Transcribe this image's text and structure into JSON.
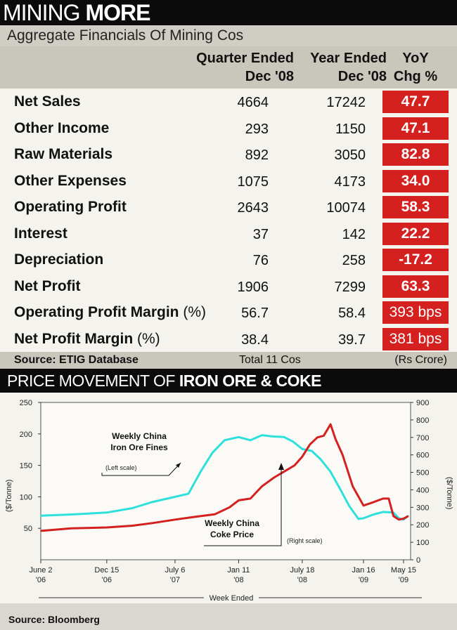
{
  "header": {
    "title_light": "MINING ",
    "title_bold": "MORE"
  },
  "subtitle": "Aggregate Financials Of Mining Cos",
  "table": {
    "columns": {
      "quarter": [
        "Quarter Ended",
        "Dec '08"
      ],
      "year": [
        "Year Ended",
        "Dec '08"
      ],
      "chg": [
        "YoY",
        "Chg %"
      ]
    },
    "rows": [
      {
        "label": "Net Sales",
        "unit": "",
        "quarter": "4664",
        "year": "17242",
        "chg": "47.7"
      },
      {
        "label": "Other Income",
        "unit": "",
        "quarter": "293",
        "year": "1150",
        "chg": "47.1"
      },
      {
        "label": "Raw Materials",
        "unit": "",
        "quarter": "892",
        "year": "3050",
        "chg": "82.8"
      },
      {
        "label": "Other Expenses",
        "unit": "",
        "quarter": "1075",
        "year": "4173",
        "chg": "34.0"
      },
      {
        "label": "Operating Profit",
        "unit": "",
        "quarter": "2643",
        "year": "10074",
        "chg": "58.3"
      },
      {
        "label": "Interest",
        "unit": "",
        "quarter": "37",
        "year": "142",
        "chg": "22.2"
      },
      {
        "label": "Depreciation",
        "unit": "",
        "quarter": "76",
        "year": "258",
        "chg": "-17.2"
      },
      {
        "label": "Net Profit",
        "unit": "",
        "quarter": "1906",
        "year": "7299",
        "chg": "63.3"
      },
      {
        "label": "Operating Profit Margin ",
        "unit": "(%)",
        "quarter": "56.7",
        "year": "58.4",
        "chg": "393 bps"
      },
      {
        "label": "Net Profit Margin ",
        "unit": "(%)",
        "quarter": "38.4",
        "year": "39.7",
        "chg": "381 bps"
      }
    ],
    "source": "Source: ETIG Database",
    "total": "Total 11 Cos",
    "unit": "(Rs Crore)"
  },
  "chart_header": {
    "light": "PRICE MOVEMENT OF ",
    "bold": "IRON ORE & COKE"
  },
  "chart_data": {
    "type": "line",
    "xlabel": "Week Ended",
    "x_ticks": [
      [
        "June 2",
        "'06"
      ],
      [
        "Dec 15",
        "'06"
      ],
      [
        "July 6",
        "'07"
      ],
      [
        "Jan 11",
        "'08"
      ],
      [
        "July 18",
        "'08"
      ],
      [
        "Jan 16",
        "'09"
      ],
      [
        "May 15",
        "'09"
      ]
    ],
    "left_axis": {
      "label": "($/Tonne)",
      "ticks": [
        50,
        100,
        150,
        200,
        250
      ],
      "range": [
        0,
        250
      ]
    },
    "right_axis": {
      "label": "($/Tonne)",
      "ticks": [
        0,
        100,
        200,
        300,
        400,
        500,
        600,
        700,
        800,
        900
      ],
      "range": [
        0,
        900
      ]
    },
    "series": [
      {
        "name": "Weekly China Iron Ore Fines",
        "axis": "left",
        "color": "#2ee0dc",
        "x": [
          "2006-06-02",
          "2006-09-01",
          "2006-12-15",
          "2007-03-01",
          "2007-05-01",
          "2007-07-06",
          "2007-08-15",
          "2007-09-20",
          "2007-10-25",
          "2007-11-30",
          "2008-01-11",
          "2008-02-15",
          "2008-03-20",
          "2008-04-20",
          "2008-05-25",
          "2008-06-20",
          "2008-07-18",
          "2008-08-15",
          "2008-09-10",
          "2008-10-10",
          "2008-11-10",
          "2008-12-05",
          "2009-01-01",
          "2009-01-16",
          "2009-02-15",
          "2009-03-15",
          "2009-04-15",
          "2009-05-01",
          "2009-05-15",
          "2009-05-29"
        ],
        "y": [
          70,
          72,
          75,
          82,
          92,
          100,
          105,
          140,
          170,
          190,
          195,
          190,
          198,
          196,
          195,
          188,
          176,
          173,
          160,
          140,
          110,
          85,
          65,
          66,
          72,
          76,
          75,
          66,
          64,
          70
        ]
      },
      {
        "name": "Weekly China Coke Price",
        "axis": "right",
        "color": "#d4201f",
        "x": [
          "2006-06-02",
          "2006-09-01",
          "2006-12-15",
          "2007-03-01",
          "2007-05-01",
          "2007-07-06",
          "2007-09-01",
          "2007-11-01",
          "2007-12-15",
          "2008-01-11",
          "2008-02-15",
          "2008-03-20",
          "2008-04-25",
          "2008-05-30",
          "2008-06-25",
          "2008-07-18",
          "2008-08-10",
          "2008-09-01",
          "2008-09-20",
          "2008-10-10",
          "2008-10-25",
          "2008-11-15",
          "2008-12-15",
          "2009-01-16",
          "2009-02-15",
          "2009-03-15",
          "2009-04-01",
          "2009-04-15",
          "2009-05-01",
          "2009-05-15",
          "2009-05-29"
        ],
        "y": [
          165,
          180,
          185,
          195,
          210,
          230,
          245,
          260,
          300,
          340,
          350,
          420,
          470,
          510,
          540,
          590,
          660,
          700,
          710,
          775,
          690,
          600,
          420,
          310,
          330,
          350,
          350,
          250,
          230,
          235,
          250
        ]
      }
    ],
    "annotations": [
      {
        "lines": [
          "Weekly China",
          "Iron Ore Fines"
        ],
        "note": "(Left scale)"
      },
      {
        "lines": [
          "Weekly China",
          "Coke Price"
        ],
        "note": "(Right scale)"
      }
    ],
    "grid": false
  },
  "footer": {
    "source": "Source: Bloomberg"
  }
}
